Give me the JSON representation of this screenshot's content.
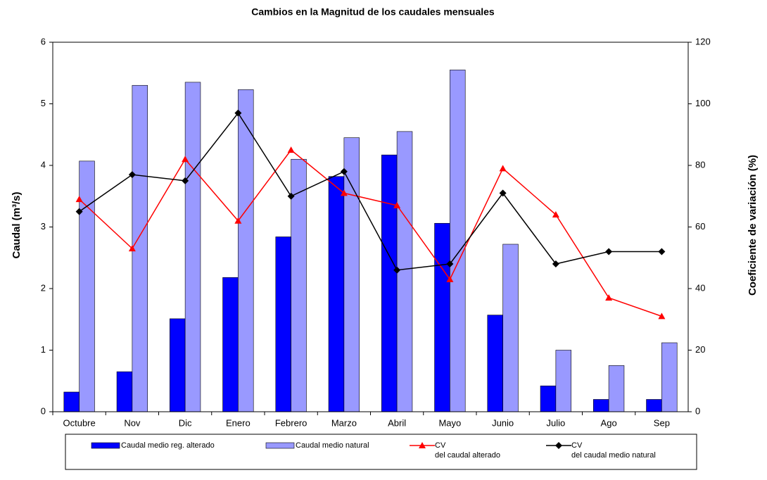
{
  "chart_data": {
    "type": "bar_line",
    "title": "Cambios en la Magnitud  de los caudales mensuales",
    "y_label": "Caudal  (m³/s)",
    "y2_label": "Coeficiente de variación (%)",
    "categories": [
      "Octubre",
      "Nov",
      "Dic",
      "Enero",
      "Febrero",
      "Marzo",
      "Abril",
      "Mayo",
      "Junio",
      "Julio",
      "Ago",
      "Sep"
    ],
    "series": [
      {
        "name": "Caudal medio reg. alterado",
        "type": "bar",
        "color": "#0000ff",
        "values": [
          0.32,
          0.65,
          1.51,
          2.18,
          2.84,
          3.82,
          4.17,
          3.06,
          1.57,
          0.42,
          0.2,
          0.2
        ]
      },
      {
        "name": "Caudal medio natural",
        "type": "bar",
        "color": "#9999ff",
        "values": [
          4.07,
          5.3,
          5.35,
          5.23,
          4.1,
          4.45,
          4.55,
          5.55,
          2.72,
          1.0,
          0.75,
          1.12
        ]
      },
      {
        "name": "CV\ndel caudal alterado",
        "type": "line",
        "marker": "triangle",
        "axis": "y2",
        "color": "#ff0000",
        "values": [
          69,
          53,
          82,
          62,
          85,
          71,
          67,
          43,
          79,
          64,
          37,
          31
        ]
      },
      {
        "name": "CV\ndel caudal medio natural",
        "type": "line",
        "marker": "diamond",
        "axis": "y2",
        "color": "#000000",
        "values": [
          65,
          77,
          75,
          97,
          70,
          78,
          46,
          48,
          71,
          48,
          52,
          52
        ]
      }
    ],
    "ylim": [
      0,
      6
    ],
    "yticks": [
      0,
      1,
      2,
      3,
      4,
      5,
      6
    ],
    "y2lim": [
      0,
      120
    ],
    "y2ticks": [
      0,
      20,
      40,
      60,
      80,
      100,
      120
    ],
    "grid": false,
    "legend": "bottom"
  }
}
